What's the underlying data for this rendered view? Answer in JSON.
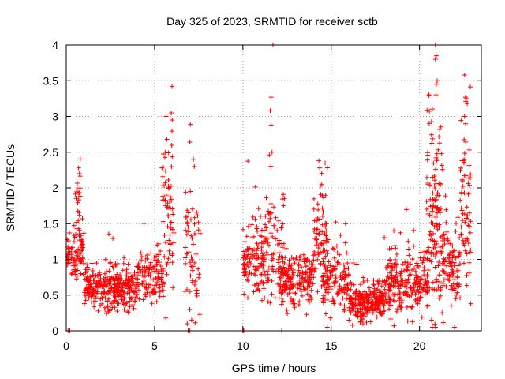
{
  "chart_data": {
    "type": "scatter",
    "title": "Day 325 of 2023, SRMTID for receiver sctb",
    "xlabel": "GPS time / hours",
    "ylabel": "SRMTID / TECUs",
    "xlim": [
      0,
      23.5
    ],
    "ylim": [
      0,
      4
    ],
    "xticks": [
      0,
      5,
      10,
      15,
      20
    ],
    "xtick_labels": [
      "0",
      "5",
      "10",
      "15",
      "20"
    ],
    "yticks": [
      0,
      0.5,
      1,
      1.5,
      2,
      2.5,
      3,
      3.5,
      4
    ],
    "ytick_labels": [
      "0",
      "0.5",
      "1",
      "1.5",
      "2",
      "2.5",
      "3",
      "3.5",
      "4"
    ],
    "grid": true,
    "marker": "+",
    "color": "#ff0000",
    "seed": 325,
    "clusters": [
      {
        "x_start": 0.0,
        "x_end": 1.0,
        "y_center": 1.1,
        "y_spread": 0.3,
        "count": 90
      },
      {
        "x_start": 0.5,
        "x_end": 0.8,
        "y_center": 1.8,
        "y_spread": 0.4,
        "count": 20
      },
      {
        "x_start": 1.0,
        "x_end": 4.0,
        "y_center": 0.6,
        "y_spread": 0.25,
        "count": 320
      },
      {
        "x_start": 4.0,
        "x_end": 5.5,
        "y_center": 0.75,
        "y_spread": 0.3,
        "count": 120
      },
      {
        "x_start": 5.4,
        "x_end": 6.1,
        "y_center": 1.6,
        "y_spread": 0.9,
        "count": 70
      },
      {
        "x_start": 6.7,
        "x_end": 7.6,
        "y_center": 1.0,
        "y_spread": 0.8,
        "count": 60
      },
      {
        "x_start": 10.0,
        "x_end": 11.5,
        "y_center": 1.0,
        "y_spread": 0.45,
        "count": 150
      },
      {
        "x_start": 11.3,
        "x_end": 12.5,
        "y_center": 1.2,
        "y_spread": 0.8,
        "count": 60
      },
      {
        "x_start": 12.0,
        "x_end": 14.0,
        "y_center": 0.7,
        "y_spread": 0.3,
        "count": 200
      },
      {
        "x_start": 14.0,
        "x_end": 14.8,
        "y_center": 1.3,
        "y_spread": 0.6,
        "count": 80
      },
      {
        "x_start": 14.5,
        "x_end": 16.0,
        "y_center": 0.7,
        "y_spread": 0.35,
        "count": 130
      },
      {
        "x_start": 16.0,
        "x_end": 18.0,
        "y_center": 0.4,
        "y_spread": 0.2,
        "count": 240
      },
      {
        "x_start": 18.0,
        "x_end": 20.5,
        "y_center": 0.65,
        "y_spread": 0.35,
        "count": 250
      },
      {
        "x_start": 20.4,
        "x_end": 21.3,
        "y_center": 1.6,
        "y_spread": 1.1,
        "count": 140
      },
      {
        "x_start": 21.3,
        "x_end": 22.3,
        "y_center": 0.9,
        "y_spread": 0.5,
        "count": 100
      },
      {
        "x_start": 22.3,
        "x_end": 22.9,
        "y_center": 1.7,
        "y_spread": 0.9,
        "count": 70
      }
    ],
    "peak_points": [
      {
        "x": 0.7,
        "y": 2.28
      },
      {
        "x": 0.75,
        "y": 2.2
      },
      {
        "x": 5.65,
        "y": 3.0
      },
      {
        "x": 5.95,
        "y": 3.05
      },
      {
        "x": 6.0,
        "y": 2.95
      },
      {
        "x": 5.7,
        "y": 2.68
      },
      {
        "x": 5.6,
        "y": 2.5
      },
      {
        "x": 7.2,
        "y": 2.4
      },
      {
        "x": 7.25,
        "y": 2.3
      },
      {
        "x": 11.6,
        "y": 3.27
      },
      {
        "x": 11.55,
        "y": 3.08
      },
      {
        "x": 11.6,
        "y": 2.88
      },
      {
        "x": 11.65,
        "y": 2.5
      },
      {
        "x": 14.3,
        "y": 2.38
      },
      {
        "x": 14.35,
        "y": 2.28
      },
      {
        "x": 20.9,
        "y": 4.0
      },
      {
        "x": 20.95,
        "y": 3.85
      },
      {
        "x": 20.9,
        "y": 3.8
      },
      {
        "x": 21.0,
        "y": 3.5
      },
      {
        "x": 20.95,
        "y": 3.45
      },
      {
        "x": 22.55,
        "y": 3.58
      },
      {
        "x": 22.6,
        "y": 3.27
      },
      {
        "x": 22.65,
        "y": 3.25
      },
      {
        "x": 22.7,
        "y": 3.18
      },
      {
        "x": 22.55,
        "y": 3.0
      },
      {
        "x": 0.1,
        "y": 0.0
      },
      {
        "x": 0.2,
        "y": 0.0
      },
      {
        "x": 6.9,
        "y": 0.0
      },
      {
        "x": 7.0,
        "y": 0.0
      },
      {
        "x": 10.0,
        "y": 0.0
      },
      {
        "x": 10.05,
        "y": 0.0
      },
      {
        "x": 12.2,
        "y": 0.0
      },
      {
        "x": 6.85,
        "y": 0.1
      },
      {
        "x": 7.1,
        "y": 0.15
      },
      {
        "x": 16.8,
        "y": 0.1
      },
      {
        "x": 17.0,
        "y": 0.12
      },
      {
        "x": 21.8,
        "y": 0.35
      },
      {
        "x": 22.9,
        "y": 0.38
      }
    ]
  }
}
